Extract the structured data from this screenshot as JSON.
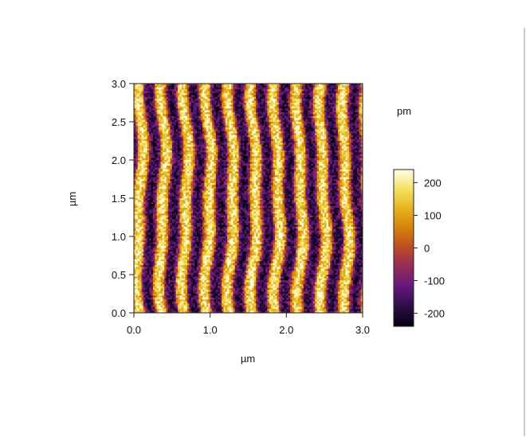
{
  "chart_data": {
    "type": "heatmap",
    "description_hidden": "",
    "xlabel": "µm",
    "ylabel": "µm",
    "xlim": [
      0,
      3.0
    ],
    "ylim": [
      0,
      3.0
    ],
    "x_ticks": [
      "0.0",
      "1.0",
      "2.0",
      "3.0"
    ],
    "y_ticks": [
      "0.0",
      "0.5",
      "1.0",
      "1.5",
      "2.0",
      "2.5",
      "3.0"
    ],
    "colorbar": {
      "unit_label": "pm",
      "range": [
        -240,
        240
      ],
      "ticks": [
        "200",
        "100",
        "0",
        "-100",
        "-200"
      ],
      "tick_values": [
        200,
        100,
        0,
        -100,
        -200
      ],
      "colormap": [
        "#060010",
        "#2d0d45",
        "#63177a",
        "#922a5c",
        "#bd4a23",
        "#d6810c",
        "#e6b21f",
        "#f5e261",
        "#fffee8"
      ]
    },
    "surface": {
      "stripe_period_um": 0.3,
      "stripe_count": 10,
      "amplitude_pm": 220,
      "grid": [
        120,
        120
      ]
    }
  }
}
